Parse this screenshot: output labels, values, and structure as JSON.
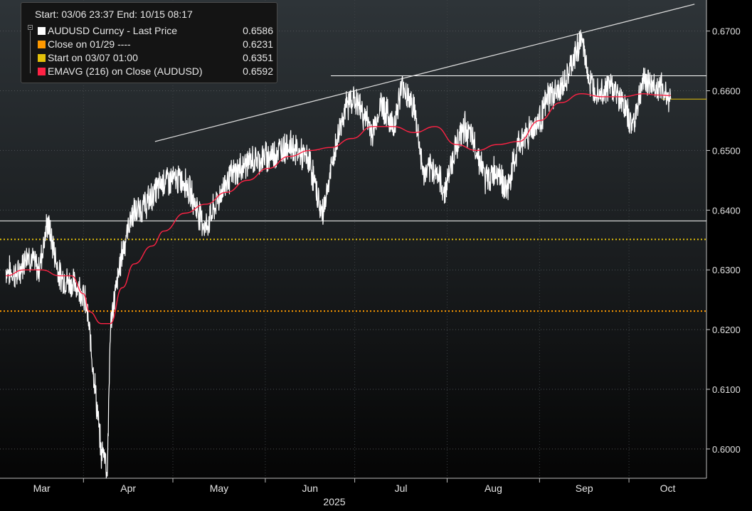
{
  "legend": {
    "header": "Start: 03/06 23:37 End: 10/15 08:17",
    "items": [
      {
        "name": "AUDUSD Curncy - Last Price",
        "value": "0.6586",
        "color": "#ffffff"
      },
      {
        "name": "Close on 01/29 ----",
        "value": "0.6231",
        "color": "#ff9900"
      },
      {
        "name": "Start on 03/07 01:00",
        "value": "0.6351",
        "color": "#e3c10a"
      },
      {
        "name": "EMAVG (216)  on Close (AUDUSD)",
        "value": "0.6592",
        "color": "#ff2244"
      }
    ]
  },
  "chart_data": {
    "type": "line",
    "ylim": [
      0.5951,
      0.6752
    ],
    "y_ticks": [
      "0.6000",
      "0.6100",
      "0.6200",
      "0.6300",
      "0.6400",
      "0.6500",
      "0.6600",
      "0.6700"
    ],
    "x_ticks": [
      "Mar",
      "Apr",
      "May",
      "Jun",
      "Jul",
      "Aug",
      "Sep",
      "Oct"
    ],
    "x_year_label": "2025",
    "series": [
      {
        "name": "AUDUSD Curncy - Last Price",
        "color": "#ffffff",
        "x": [
          "03/06",
          "03/10",
          "03/13",
          "03/17",
          "03/20",
          "03/24",
          "03/27",
          "03/31",
          "04/02",
          "04/04",
          "04/07",
          "04/08",
          "04/09",
          "04/10",
          "04/11",
          "04/14",
          "04/17",
          "04/22",
          "04/28",
          "05/05",
          "05/12",
          "05/19",
          "05/26",
          "06/02",
          "06/09",
          "06/16",
          "06/20",
          "06/24",
          "06/27",
          "06/30",
          "07/03",
          "07/07",
          "07/10",
          "07/14",
          "07/17",
          "07/21",
          "07/24",
          "07/28",
          "07/31",
          "08/04",
          "08/07",
          "08/11",
          "08/14",
          "08/18",
          "08/21",
          "08/25",
          "08/28",
          "09/01",
          "09/04",
          "09/08",
          "09/11",
          "09/15",
          "09/18",
          "09/22",
          "09/25",
          "09/29",
          "10/02",
          "10/06",
          "10/09",
          "10/13",
          "10/15"
        ],
        "values": [
          0.63,
          0.629,
          0.633,
          0.63,
          0.638,
          0.629,
          0.628,
          0.627,
          0.624,
          0.615,
          0.599,
          0.6,
          0.596,
          0.62,
          0.624,
          0.633,
          0.639,
          0.641,
          0.645,
          0.645,
          0.637,
          0.645,
          0.648,
          0.649,
          0.651,
          0.648,
          0.639,
          0.649,
          0.656,
          0.659,
          0.657,
          0.653,
          0.658,
          0.654,
          0.661,
          0.657,
          0.646,
          0.647,
          0.643,
          0.651,
          0.654,
          0.65,
          0.645,
          0.647,
          0.643,
          0.651,
          0.653,
          0.655,
          0.659,
          0.66,
          0.663,
          0.669,
          0.661,
          0.66,
          0.661,
          0.658,
          0.654,
          0.662,
          0.661,
          0.66,
          0.6586
        ]
      },
      {
        "name": "EMAVG (216)  on Close (AUDUSD)",
        "color": "#ff2244",
        "x": [
          "03/06",
          "03/12",
          "03/18",
          "03/24",
          "03/28",
          "04/01",
          "04/03",
          "04/07",
          "04/10",
          "04/14",
          "04/18",
          "04/24",
          "04/28",
          "05/05",
          "05/12",
          "05/19",
          "05/26",
          "06/02",
          "06/09",
          "06/16",
          "06/23",
          "06/30",
          "07/07",
          "07/14",
          "07/21",
          "07/28",
          "08/04",
          "08/11",
          "08/18",
          "08/25",
          "09/01",
          "09/08",
          "09/15",
          "09/22",
          "09/29",
          "10/06",
          "10/10",
          "10/15"
        ],
        "values": [
          0.629,
          0.63,
          0.63,
          0.629,
          0.629,
          0.626,
          0.623,
          0.621,
          0.621,
          0.627,
          0.631,
          0.634,
          0.6365,
          0.6395,
          0.641,
          0.643,
          0.645,
          0.647,
          0.649,
          0.65,
          0.6505,
          0.652,
          0.654,
          0.654,
          0.653,
          0.654,
          0.651,
          0.65,
          0.651,
          0.6515,
          0.655,
          0.658,
          0.6595,
          0.659,
          0.659,
          0.6595,
          0.6593,
          0.6592
        ]
      }
    ],
    "reference_lines": [
      {
        "label": "Close on 01/29",
        "y": 0.6231,
        "color": "#ff9900",
        "style": "dotted"
      },
      {
        "label": "Start on 03/07 01:00",
        "y": 0.6351,
        "color": "#e3c10a",
        "style": "dotted"
      },
      {
        "y": 0.6382,
        "color": "#ffffff",
        "style": "solid"
      },
      {
        "y": 0.6625,
        "color": "#ffffff",
        "style": "solid"
      },
      {
        "y": 0.6586,
        "color": "#e3c10a",
        "style": "solid"
      }
    ],
    "trendline": {
      "from": [
        "04/25",
        0.6515
      ],
      "to": [
        "10/23",
        0.6745
      ],
      "color": "#d8d8d8"
    },
    "grid": true,
    "legend_position": "top-left"
  }
}
